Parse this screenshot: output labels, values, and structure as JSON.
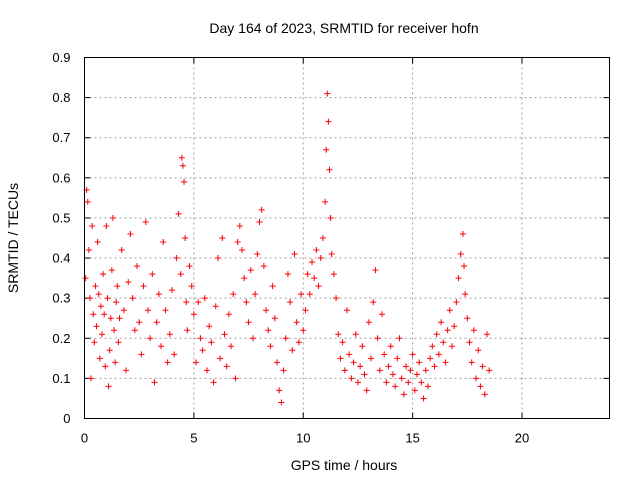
{
  "chart_data": {
    "type": "scatter",
    "title": "Day 164 of 2023, SRMTID for receiver hofn",
    "xlabel": "GPS time / hours",
    "ylabel": "SRMTID / TECUs",
    "xlim": [
      0,
      24
    ],
    "ylim": [
      0,
      0.9
    ],
    "xticks": [
      0,
      5,
      10,
      15,
      20
    ],
    "yticks": [
      0,
      0.1,
      0.2,
      0.3,
      0.4,
      0.5,
      0.6,
      0.7,
      0.8,
      0.9
    ],
    "xtick_labels": [
      "0",
      "5",
      "10",
      "15",
      "20"
    ],
    "ytick_labels": [
      "0",
      "0.1",
      "0.2",
      "0.3",
      "0.4",
      "0.5",
      "0.6",
      "0.7",
      "0.8",
      "0.9"
    ],
    "grid": true,
    "marker": "+",
    "color": "#ff0000",
    "series": [
      {
        "name": "SRMTID",
        "points": [
          [
            0.05,
            0.35
          ],
          [
            0.1,
            0.57
          ],
          [
            0.15,
            0.54
          ],
          [
            0.2,
            0.42
          ],
          [
            0.25,
            0.3
          ],
          [
            0.3,
            0.1
          ],
          [
            0.35,
            0.48
          ],
          [
            0.4,
            0.26
          ],
          [
            0.45,
            0.19
          ],
          [
            0.5,
            0.33
          ],
          [
            0.55,
            0.23
          ],
          [
            0.6,
            0.44
          ],
          [
            0.65,
            0.31
          ],
          [
            0.7,
            0.15
          ],
          [
            0.75,
            0.28
          ],
          [
            0.8,
            0.21
          ],
          [
            0.85,
            0.36
          ],
          [
            0.9,
            0.26
          ],
          [
            0.95,
            0.13
          ],
          [
            1.0,
            0.48
          ],
          [
            1.05,
            0.3
          ],
          [
            1.1,
            0.08
          ],
          [
            1.15,
            0.17
          ],
          [
            1.2,
            0.25
          ],
          [
            1.25,
            0.37
          ],
          [
            1.3,
            0.5
          ],
          [
            1.35,
            0.22
          ],
          [
            1.4,
            0.14
          ],
          [
            1.45,
            0.29
          ],
          [
            1.5,
            0.33
          ],
          [
            1.55,
            0.19
          ],
          [
            1.6,
            0.25
          ],
          [
            1.7,
            0.42
          ],
          [
            1.8,
            0.27
          ],
          [
            1.9,
            0.12
          ],
          [
            2.0,
            0.34
          ],
          [
            2.1,
            0.46
          ],
          [
            2.2,
            0.3
          ],
          [
            2.3,
            0.22
          ],
          [
            2.4,
            0.38
          ],
          [
            2.5,
            0.24
          ],
          [
            2.6,
            0.16
          ],
          [
            2.7,
            0.33
          ],
          [
            2.8,
            0.49
          ],
          [
            2.9,
            0.27
          ],
          [
            3.0,
            0.2
          ],
          [
            3.1,
            0.36
          ],
          [
            3.2,
            0.09
          ],
          [
            3.3,
            0.24
          ],
          [
            3.4,
            0.31
          ],
          [
            3.5,
            0.18
          ],
          [
            3.6,
            0.44
          ],
          [
            3.7,
            0.27
          ],
          [
            3.8,
            0.14
          ],
          [
            3.9,
            0.21
          ],
          [
            4.0,
            0.32
          ],
          [
            4.1,
            0.16
          ],
          [
            4.2,
            0.4
          ],
          [
            4.3,
            0.51
          ],
          [
            4.4,
            0.36
          ],
          [
            4.45,
            0.65
          ],
          [
            4.5,
            0.63
          ],
          [
            4.55,
            0.59
          ],
          [
            4.6,
            0.45
          ],
          [
            4.65,
            0.29
          ],
          [
            4.7,
            0.22
          ],
          [
            4.8,
            0.38
          ],
          [
            4.9,
            0.33
          ],
          [
            5.0,
            0.26
          ],
          [
            5.1,
            0.14
          ],
          [
            5.2,
            0.29
          ],
          [
            5.3,
            0.2
          ],
          [
            5.4,
            0.17
          ],
          [
            5.5,
            0.3
          ],
          [
            5.6,
            0.12
          ],
          [
            5.7,
            0.23
          ],
          [
            5.8,
            0.19
          ],
          [
            5.9,
            0.09
          ],
          [
            6.0,
            0.28
          ],
          [
            6.1,
            0.4
          ],
          [
            6.2,
            0.15
          ],
          [
            6.3,
            0.45
          ],
          [
            6.4,
            0.21
          ],
          [
            6.5,
            0.13
          ],
          [
            6.6,
            0.26
          ],
          [
            6.7,
            0.18
          ],
          [
            6.8,
            0.31
          ],
          [
            6.9,
            0.1
          ],
          [
            7.0,
            0.44
          ],
          [
            7.1,
            0.48
          ],
          [
            7.2,
            0.42
          ],
          [
            7.3,
            0.35
          ],
          [
            7.4,
            0.29
          ],
          [
            7.5,
            0.24
          ],
          [
            7.6,
            0.37
          ],
          [
            7.7,
            0.2
          ],
          [
            7.8,
            0.31
          ],
          [
            7.9,
            0.41
          ],
          [
            8.0,
            0.49
          ],
          [
            8.1,
            0.52
          ],
          [
            8.2,
            0.38
          ],
          [
            8.3,
            0.27
          ],
          [
            8.4,
            0.22
          ],
          [
            8.5,
            0.18
          ],
          [
            8.6,
            0.33
          ],
          [
            8.7,
            0.25
          ],
          [
            8.8,
            0.14
          ],
          [
            8.9,
            0.07
          ],
          [
            9.0,
            0.04
          ],
          [
            9.1,
            0.12
          ],
          [
            9.2,
            0.2
          ],
          [
            9.3,
            0.36
          ],
          [
            9.4,
            0.29
          ],
          [
            9.5,
            0.17
          ],
          [
            9.6,
            0.41
          ],
          [
            9.7,
            0.24
          ],
          [
            9.8,
            0.19
          ],
          [
            9.9,
            0.31
          ],
          [
            10.0,
            0.22
          ],
          [
            10.1,
            0.27
          ],
          [
            10.2,
            0.36
          ],
          [
            10.3,
            0.31
          ],
          [
            10.4,
            0.39
          ],
          [
            10.5,
            0.35
          ],
          [
            10.6,
            0.42
          ],
          [
            10.7,
            0.33
          ],
          [
            10.8,
            0.4
          ],
          [
            10.9,
            0.45
          ],
          [
            11.0,
            0.54
          ],
          [
            11.05,
            0.67
          ],
          [
            11.1,
            0.81
          ],
          [
            11.15,
            0.74
          ],
          [
            11.2,
            0.62
          ],
          [
            11.25,
            0.5
          ],
          [
            11.3,
            0.41
          ],
          [
            11.4,
            0.36
          ],
          [
            11.5,
            0.3
          ],
          [
            11.6,
            0.21
          ],
          [
            11.7,
            0.15
          ],
          [
            11.8,
            0.19
          ],
          [
            11.9,
            0.12
          ],
          [
            12.0,
            0.27
          ],
          [
            12.1,
            0.16
          ],
          [
            12.2,
            0.1
          ],
          [
            12.3,
            0.14
          ],
          [
            12.4,
            0.21
          ],
          [
            12.5,
            0.09
          ],
          [
            12.6,
            0.13
          ],
          [
            12.7,
            0.18
          ],
          [
            12.8,
            0.11
          ],
          [
            12.9,
            0.07
          ],
          [
            13.0,
            0.24
          ],
          [
            13.1,
            0.15
          ],
          [
            13.2,
            0.29
          ],
          [
            13.3,
            0.37
          ],
          [
            13.4,
            0.2
          ],
          [
            13.5,
            0.12
          ],
          [
            13.6,
            0.26
          ],
          [
            13.7,
            0.16
          ],
          [
            13.8,
            0.09
          ],
          [
            13.9,
            0.13
          ],
          [
            14.0,
            0.18
          ],
          [
            14.1,
            0.11
          ],
          [
            14.2,
            0.08
          ],
          [
            14.3,
            0.15
          ],
          [
            14.4,
            0.2
          ],
          [
            14.5,
            0.1
          ],
          [
            14.6,
            0.06
          ],
          [
            14.7,
            0.13
          ],
          [
            14.8,
            0.09
          ],
          [
            14.9,
            0.12
          ],
          [
            15.0,
            0.16
          ],
          [
            15.1,
            0.07
          ],
          [
            15.2,
            0.11
          ],
          [
            15.3,
            0.14
          ],
          [
            15.4,
            0.09
          ],
          [
            15.5,
            0.05
          ],
          [
            15.6,
            0.12
          ],
          [
            15.7,
            0.08
          ],
          [
            15.8,
            0.15
          ],
          [
            15.9,
            0.18
          ],
          [
            16.0,
            0.13
          ],
          [
            16.1,
            0.21
          ],
          [
            16.2,
            0.16
          ],
          [
            16.3,
            0.24
          ],
          [
            16.4,
            0.19
          ],
          [
            16.5,
            0.14
          ],
          [
            16.6,
            0.22
          ],
          [
            16.7,
            0.27
          ],
          [
            16.8,
            0.18
          ],
          [
            16.9,
            0.23
          ],
          [
            17.0,
            0.29
          ],
          [
            17.1,
            0.35
          ],
          [
            17.2,
            0.41
          ],
          [
            17.3,
            0.46
          ],
          [
            17.35,
            0.38
          ],
          [
            17.4,
            0.31
          ],
          [
            17.5,
            0.25
          ],
          [
            17.6,
            0.19
          ],
          [
            17.7,
            0.14
          ],
          [
            17.8,
            0.22
          ],
          [
            17.9,
            0.1
          ],
          [
            18.0,
            0.17
          ],
          [
            18.1,
            0.08
          ],
          [
            18.2,
            0.13
          ],
          [
            18.3,
            0.06
          ],
          [
            18.4,
            0.21
          ],
          [
            18.5,
            0.12
          ]
        ]
      }
    ]
  }
}
